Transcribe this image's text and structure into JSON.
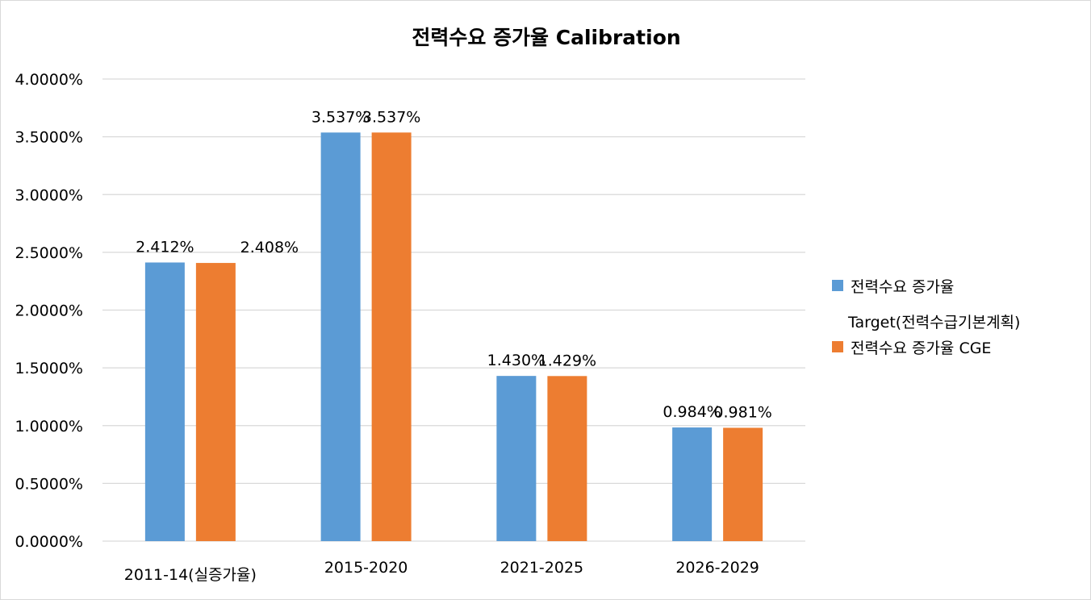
{
  "chart_data": {
    "type": "bar",
    "title": "전력수요 증가율 Calibration",
    "categories": [
      "2011-14(실증가율)",
      "2015-2020",
      "2021-2025",
      "2026-2029"
    ],
    "series": [
      {
        "name": "전력수요 증가율 Target(전력수급기본계획)",
        "legend_line1": "전력수요 증가율",
        "legend_line2": "Target(전력수급기본계획)",
        "values": [
          2.412,
          3.537,
          1.43,
          0.984
        ],
        "labels": [
          "2.412%",
          "3.537%",
          "1.430%",
          "0.984%"
        ],
        "color": "#5B9BD5"
      },
      {
        "name": "전력수요 증가율 CGE",
        "legend_line1": "전력수요 증가율 CGE",
        "values": [
          2.408,
          3.537,
          1.429,
          0.981
        ],
        "labels": [
          "2.408%",
          "3.537%",
          "1.429%",
          "0.981%"
        ],
        "color": "#ED7D31"
      }
    ],
    "y_ticks": [
      "0.0000%",
      "0.5000%",
      "1.0000%",
      "1.5000%",
      "2.0000%",
      "2.5000%",
      "3.0000%",
      "3.5000%",
      "4.0000%"
    ],
    "ylim": [
      0,
      4
    ],
    "grid": true,
    "legend_position": "right",
    "gridline_color": "#d9d9d9"
  }
}
